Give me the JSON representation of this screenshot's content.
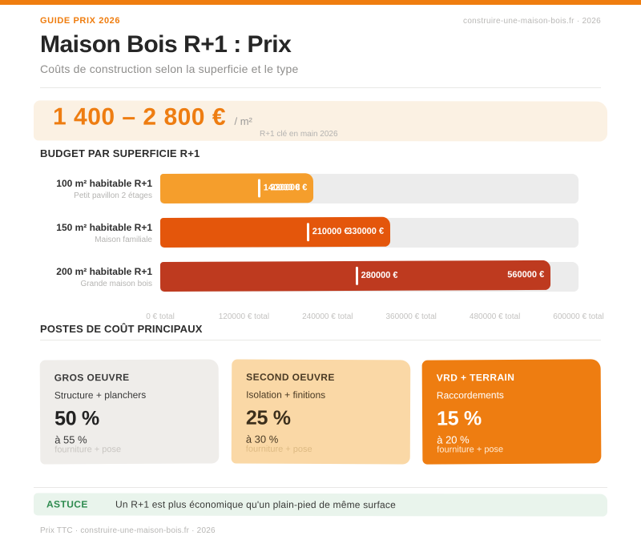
{
  "header": {
    "kicker": "GUIDE PRIX 2026",
    "source": "construire-une-maison-bois.fr · 2026",
    "title": "Maison Bois R+1 : Prix",
    "subtitle": "Coûts de construction selon la superficie et le type"
  },
  "banner": {
    "price_range": "1 400 – 2 800 €",
    "unit": "/ m²",
    "note": "R+1 clé en main 2026"
  },
  "chart_data": {
    "type": "bar",
    "orientation": "horizontal",
    "section_title": "BUDGET PAR SUPERFICIE R+1",
    "axis": {
      "min": 0,
      "max": 600000,
      "tick_labels": [
        "0 € total",
        "120000 € total",
        "240000 € total",
        "360000 € total",
        "480000 € total",
        "600000 € total"
      ]
    },
    "bars": [
      {
        "label": "100 m² habitable R+1",
        "sublabel": "Petit pavillon 2 étages",
        "min": 140000,
        "max": 220000,
        "min_label": "140000 €",
        "max_label": "220000 €",
        "color": "#F59E2C"
      },
      {
        "label": "150 m² habitable R+1",
        "sublabel": "Maison familiale",
        "min": 210000,
        "max": 330000,
        "min_label": "210000 €",
        "max_label": "330000 €",
        "color": "#E4560B"
      },
      {
        "label": "200 m² habitable R+1",
        "sublabel": "Grande maison bois",
        "min": 280000,
        "max": 560000,
        "min_label": "280000 €",
        "max_label": "560000 €",
        "color": "#BE3A1F"
      }
    ]
  },
  "costs": {
    "section_title": "POSTES DE COÛT PRINCIPAUX",
    "cards": [
      {
        "title": "GROS OEUVRE",
        "subtitle": "Structure + planchers",
        "value": "50 %",
        "range": "à 55 %",
        "note": "fourniture + pose",
        "bg": "#EFEDEA",
        "fg": "#3b3b3b",
        "value_color": "#222222",
        "note_color": "#c9c6c2"
      },
      {
        "title": "SECOND OEUVRE",
        "subtitle": "Isolation + finitions",
        "value": "25 %",
        "range": "à 30 %",
        "note": "fourniture + pose",
        "bg": "#FAD8A6",
        "fg": "#4a3a24",
        "value_color": "#3c2f1c",
        "note_color": "#ddba83"
      },
      {
        "title": "VRD + TERRAIN",
        "subtitle": "Raccordements",
        "value": "15 %",
        "range": "à 20 %",
        "note": "fourniture + pose",
        "bg": "#EE7D11",
        "fg": "#ffffff",
        "value_color": "#ffffff",
        "note_color": "#ffe9d2"
      }
    ]
  },
  "tip": {
    "label": "ASTUCE",
    "text": "Un R+1 est plus économique qu'un plain-pied de même surface"
  },
  "footer": {
    "text": "Prix TTC · construire-une-maison-bois.fr · 2026"
  },
  "colors": {
    "accent": "#EF7D0F",
    "price": "#EE7D11",
    "banner_bg": "#FBF1E3",
    "tip_bg": "#E9F4EC",
    "tip_green": "#2E8B4F",
    "track": "#ECECEC"
  }
}
